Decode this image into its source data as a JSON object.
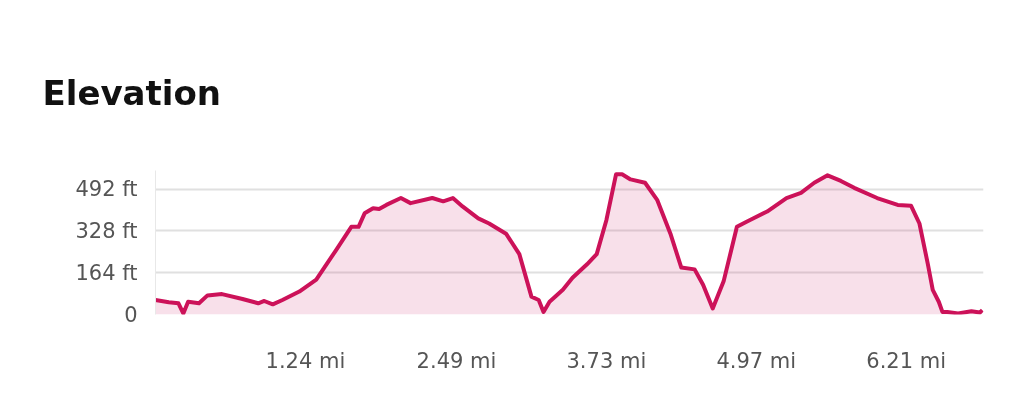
{
  "chart_data": {
    "type": "area",
    "title": "Elevation",
    "x": [
      0,
      0.11,
      0.19,
      0.23,
      0.27,
      0.36,
      0.43,
      0.55,
      0.72,
      0.85,
      0.9,
      0.97,
      1.05,
      1.19,
      1.33,
      1.49,
      1.62,
      1.68,
      1.73,
      1.8,
      1.85,
      1.91,
      2.03,
      2.11,
      2.29,
      2.38,
      2.46,
      2.54,
      2.67,
      2.76,
      2.9,
      3.01,
      3.11,
      3.17,
      3.21,
      3.26,
      3.37,
      3.45,
      3.57,
      3.65,
      3.73,
      3.81,
      3.86,
      3.93,
      4.05,
      4.15,
      4.26,
      4.35,
      4.46,
      4.53,
      4.61,
      4.7,
      4.81,
      4.89,
      5.06,
      5.22,
      5.34,
      5.45,
      5.56,
      5.67,
      5.78,
      5.97,
      6.14,
      6.25,
      6.32,
      6.39,
      6.43,
      6.48,
      6.51,
      6.55,
      6.64,
      6.75,
      6.82,
      6.84
    ],
    "series": [
      {
        "color": "#cc1259",
        "values": [
          57,
          48,
          44,
          4,
          50,
          44,
          75,
          80,
          61,
          44,
          53,
          40,
          57,
          90,
          137,
          250,
          344,
          344,
          397,
          417,
          414,
          430,
          457,
          437,
          457,
          444,
          457,
          424,
          377,
          357,
          317,
          237,
          70,
          57,
          10,
          50,
          97,
          144,
          197,
          237,
          370,
          550,
          550,
          530,
          517,
          450,
          317,
          184,
          177,
          117,
          24,
          130,
          344,
          364,
          404,
          457,
          477,
          517,
          546,
          524,
          497,
          457,
          430,
          427,
          357,
          197,
          97,
          50,
          10,
          10,
          4,
          13,
          8,
          17
        ]
      }
    ],
    "xlim": [
      0,
      6.85
    ],
    "ylim": [
      0,
      565
    ],
    "xticks": [
      {
        "value": 1.24,
        "label": "1.24 mi"
      },
      {
        "value": 2.49,
        "label": "2.49 mi"
      },
      {
        "value": 3.73,
        "label": "3.73 mi"
      },
      {
        "value": 4.97,
        "label": "4.97 mi"
      },
      {
        "value": 6.21,
        "label": "6.21 mi"
      }
    ],
    "yticks": [
      0,
      {
        "value": 164,
        "label": "164 ft"
      },
      {
        "value": 328,
        "label": "328 ft"
      },
      {
        "value": 492,
        "label": "492 ft"
      }
    ],
    "grid": "y"
  }
}
